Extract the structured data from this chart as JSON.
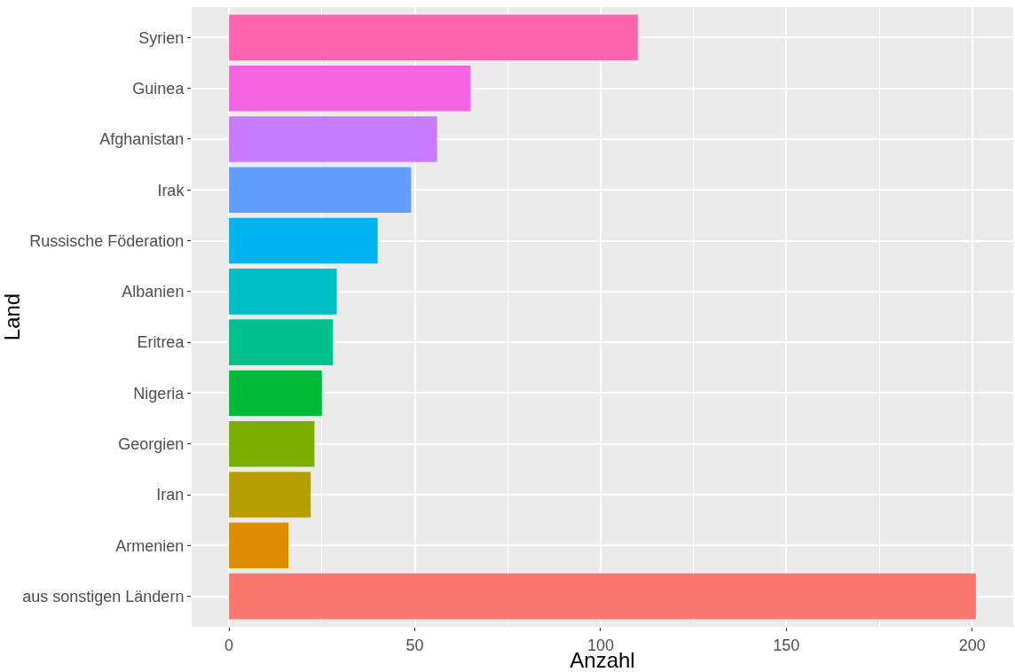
{
  "chart_data": {
    "type": "bar",
    "orientation": "horizontal",
    "xlabel": "Anzahl",
    "ylabel": "Land",
    "categories": [
      "Syrien",
      "Guinea",
      "Afghanistan",
      "Irak",
      "Russische Föderation",
      "Albanien",
      "Eritrea",
      "Nigeria",
      "Georgien",
      "Iran",
      "Armenien",
      "aus sonstigen Ländern"
    ],
    "values": [
      110,
      65,
      56,
      49,
      40,
      29,
      28,
      25,
      23,
      22,
      16,
      201
    ],
    "colors": [
      "#ff64b0",
      "#f564e3",
      "#c77cff",
      "#619cff",
      "#00b4ef",
      "#00bfc4",
      "#00c08b",
      "#00ba38",
      "#7cae00",
      "#b79f00",
      "#de8c00",
      "#f8766d"
    ],
    "xlim": [
      -10.05,
      211.05
    ],
    "xticks": [
      0,
      50,
      100,
      150,
      200
    ],
    "grid": true,
    "legend": false
  }
}
